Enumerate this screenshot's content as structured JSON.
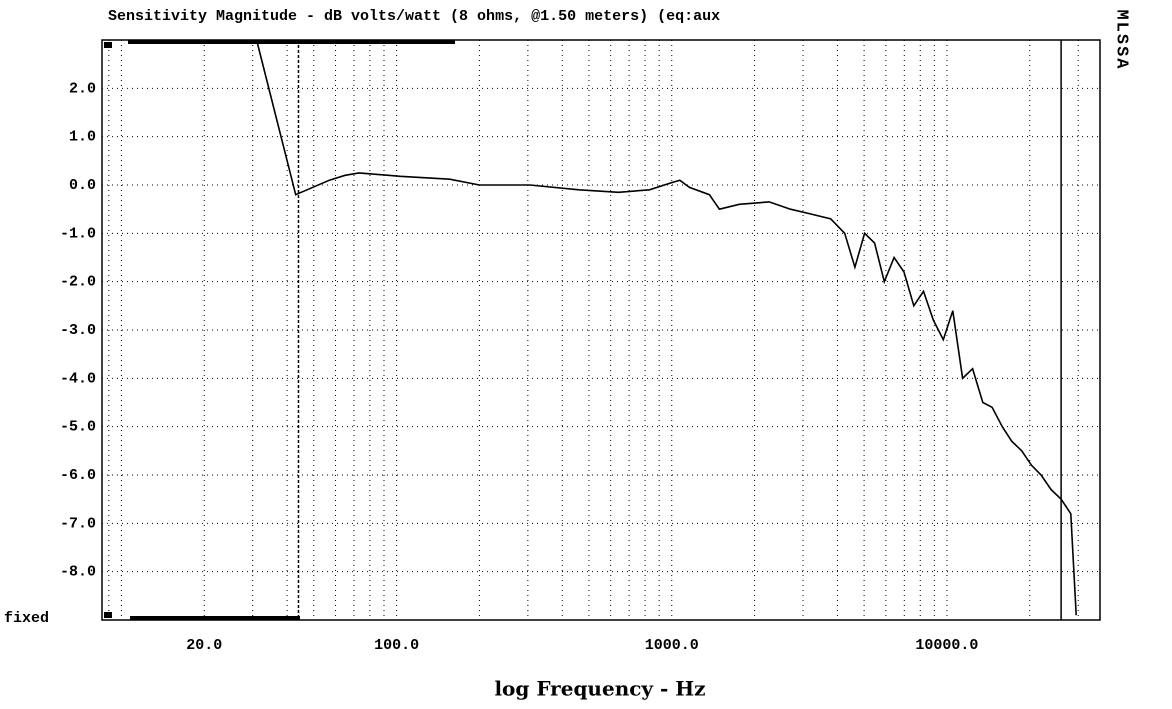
{
  "chart_data": {
    "type": "line",
    "title": "Sensitivity Magnitude - dB volts/watt (8 ohms, @1.50 meters) (eq:aux",
    "xlabel": "log Frequency - Hz",
    "side_label": "MLSSA",
    "corner_label": "fixed",
    "xscale": "log",
    "xlim": [
      8.5,
      36000
    ],
    "ylim": [
      -9,
      3
    ],
    "xticks": [
      {
        "value": 20,
        "label": "20.0"
      },
      {
        "value": 100,
        "label": "100.0"
      },
      {
        "value": 1000,
        "label": "1000.0"
      },
      {
        "value": 10000,
        "label": "10000.0"
      }
    ],
    "minor_xticks": [
      9,
      10,
      30,
      40,
      50,
      60,
      70,
      80,
      90,
      200,
      300,
      400,
      500,
      600,
      700,
      800,
      900,
      2000,
      3000,
      4000,
      5000,
      6000,
      7000,
      8000,
      9000,
      20000,
      30000
    ],
    "yticks": [
      {
        "value": 2,
        "label": "2.0"
      },
      {
        "value": 1,
        "label": "1.0"
      },
      {
        "value": 0,
        "label": "0.0"
      },
      {
        "value": -1,
        "label": "-1.0"
      },
      {
        "value": -2,
        "label": "-2.0"
      },
      {
        "value": -3,
        "label": "-3.0"
      },
      {
        "value": -4,
        "label": "-4.0"
      },
      {
        "value": -5,
        "label": "-5.0"
      },
      {
        "value": -6,
        "label": "-6.0"
      },
      {
        "value": -7,
        "label": "-7.0"
      },
      {
        "value": -8,
        "label": "-8.0"
      }
    ],
    "grid": true,
    "cursors": [
      44,
      26000
    ],
    "x": [
      31,
      43,
      57,
      65,
      73,
      103,
      156,
      200,
      305,
      460,
      640,
      830,
      1000,
      1070,
      1160,
      1370,
      1490,
      1760,
      2260,
      2700,
      3200,
      3780,
      4250,
      4630,
      5020,
      5460,
      5920,
      6430,
      6980,
      7580,
      8220,
      8930,
      9700,
      10500,
      11400,
      12400,
      13500,
      14600,
      15900,
      17200,
      18700,
      20300,
      22000,
      23900,
      26000,
      28200,
      29500
    ],
    "series": [
      {
        "color": "#000000",
        "values": [
          3.0,
          -0.2,
          0.1,
          0.2,
          0.25,
          0.18,
          0.12,
          0.0,
          0.0,
          -0.1,
          -0.15,
          -0.1,
          0.05,
          0.1,
          -0.05,
          -0.2,
          -0.5,
          -0.4,
          -0.35,
          -0.5,
          -0.6,
          -0.7,
          -1.0,
          -1.7,
          -1.0,
          -1.2,
          -2.0,
          -1.5,
          -1.8,
          -2.5,
          -2.2,
          -2.8,
          -3.2,
          -2.6,
          -4.0,
          -3.8,
          -4.5,
          -4.6,
          -5.0,
          -5.3,
          -5.5,
          -5.8,
          -6.0,
          -6.3,
          -6.5,
          -6.8,
          -8.9
        ]
      }
    ]
  }
}
